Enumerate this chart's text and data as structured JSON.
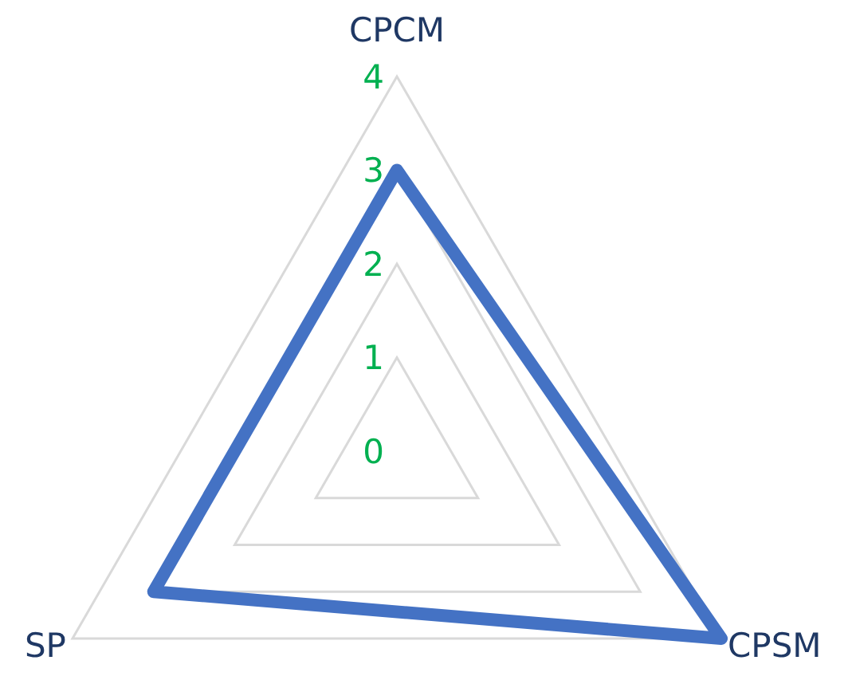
{
  "chart_data": {
    "type": "radar",
    "categories": [
      "CPCM",
      "CPSM",
      "SP"
    ],
    "series": [
      {
        "color": "#4472c4",
        "values": [
          3,
          4,
          3
        ]
      }
    ],
    "ylim": [
      0,
      4
    ],
    "yticks": [
      0,
      1,
      2,
      3,
      4
    ],
    "grid": true,
    "marker": "none"
  }
}
